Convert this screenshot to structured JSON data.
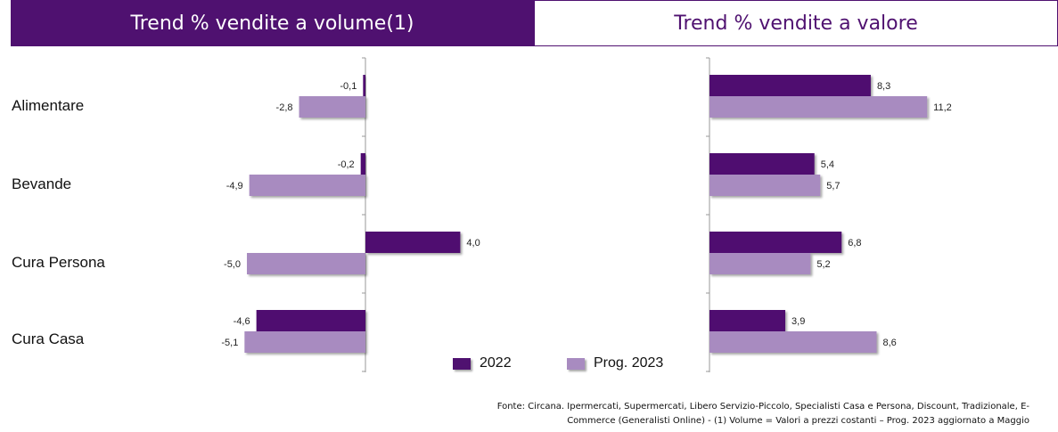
{
  "headers": {
    "left": "Trend % vendite a volume(1)",
    "right": "Trend % vendite a valore"
  },
  "categories": [
    "Alimentare",
    "Bevande",
    "Cura Persona",
    "Cura Casa"
  ],
  "legend": [
    {
      "name": "2022",
      "color": "#4f1170"
    },
    {
      "name": "Prog. 2023",
      "color": "#a88bc0"
    }
  ],
  "source": "Fonte: Circana. Ipermercati, Supermercati, Libero Servizio-Piccolo, Specialisti Casa e Persona, Discount, Tradizionale, E-Commerce (Generalisti Online) - (1) Volume = Valori a prezzi costanti – Prog. 2023 aggiornato a Maggio",
  "chart_data": [
    {
      "type": "bar",
      "orientation": "horizontal",
      "title": "Trend % vendite a volume(1)",
      "categories": [
        "Alimentare",
        "Bevande",
        "Cura Persona",
        "Cura Casa"
      ],
      "series": [
        {
          "name": "2022",
          "values": [
            -0.1,
            -0.2,
            4.0,
            -4.6
          ],
          "labels": [
            "-0,1",
            "-0,2",
            "4,0",
            "-4,6"
          ],
          "color": "#4f1170"
        },
        {
          "name": "Prog. 2023",
          "values": [
            -2.8,
            -4.9,
            -5.0,
            -5.1
          ],
          "labels": [
            "-2,8",
            "-4,9",
            "-5,0",
            "-5,1"
          ],
          "color": "#a88bc0"
        }
      ],
      "grid": false
    },
    {
      "type": "bar",
      "orientation": "horizontal",
      "title": "Trend % vendite a valore",
      "categories": [
        "Alimentare",
        "Bevande",
        "Cura Persona",
        "Cura Casa"
      ],
      "series": [
        {
          "name": "2022",
          "values": [
            8.3,
            5.4,
            6.8,
            3.9
          ],
          "labels": [
            "8,3",
            "5,4",
            "6,8",
            "3,9"
          ],
          "color": "#4f1170"
        },
        {
          "name": "Prog. 2023",
          "values": [
            11.2,
            5.7,
            5.2,
            8.6
          ],
          "labels": [
            "11,2",
            "5,7",
            "5,2",
            "8,6"
          ],
          "color": "#a88bc0"
        }
      ],
      "grid": false
    }
  ]
}
